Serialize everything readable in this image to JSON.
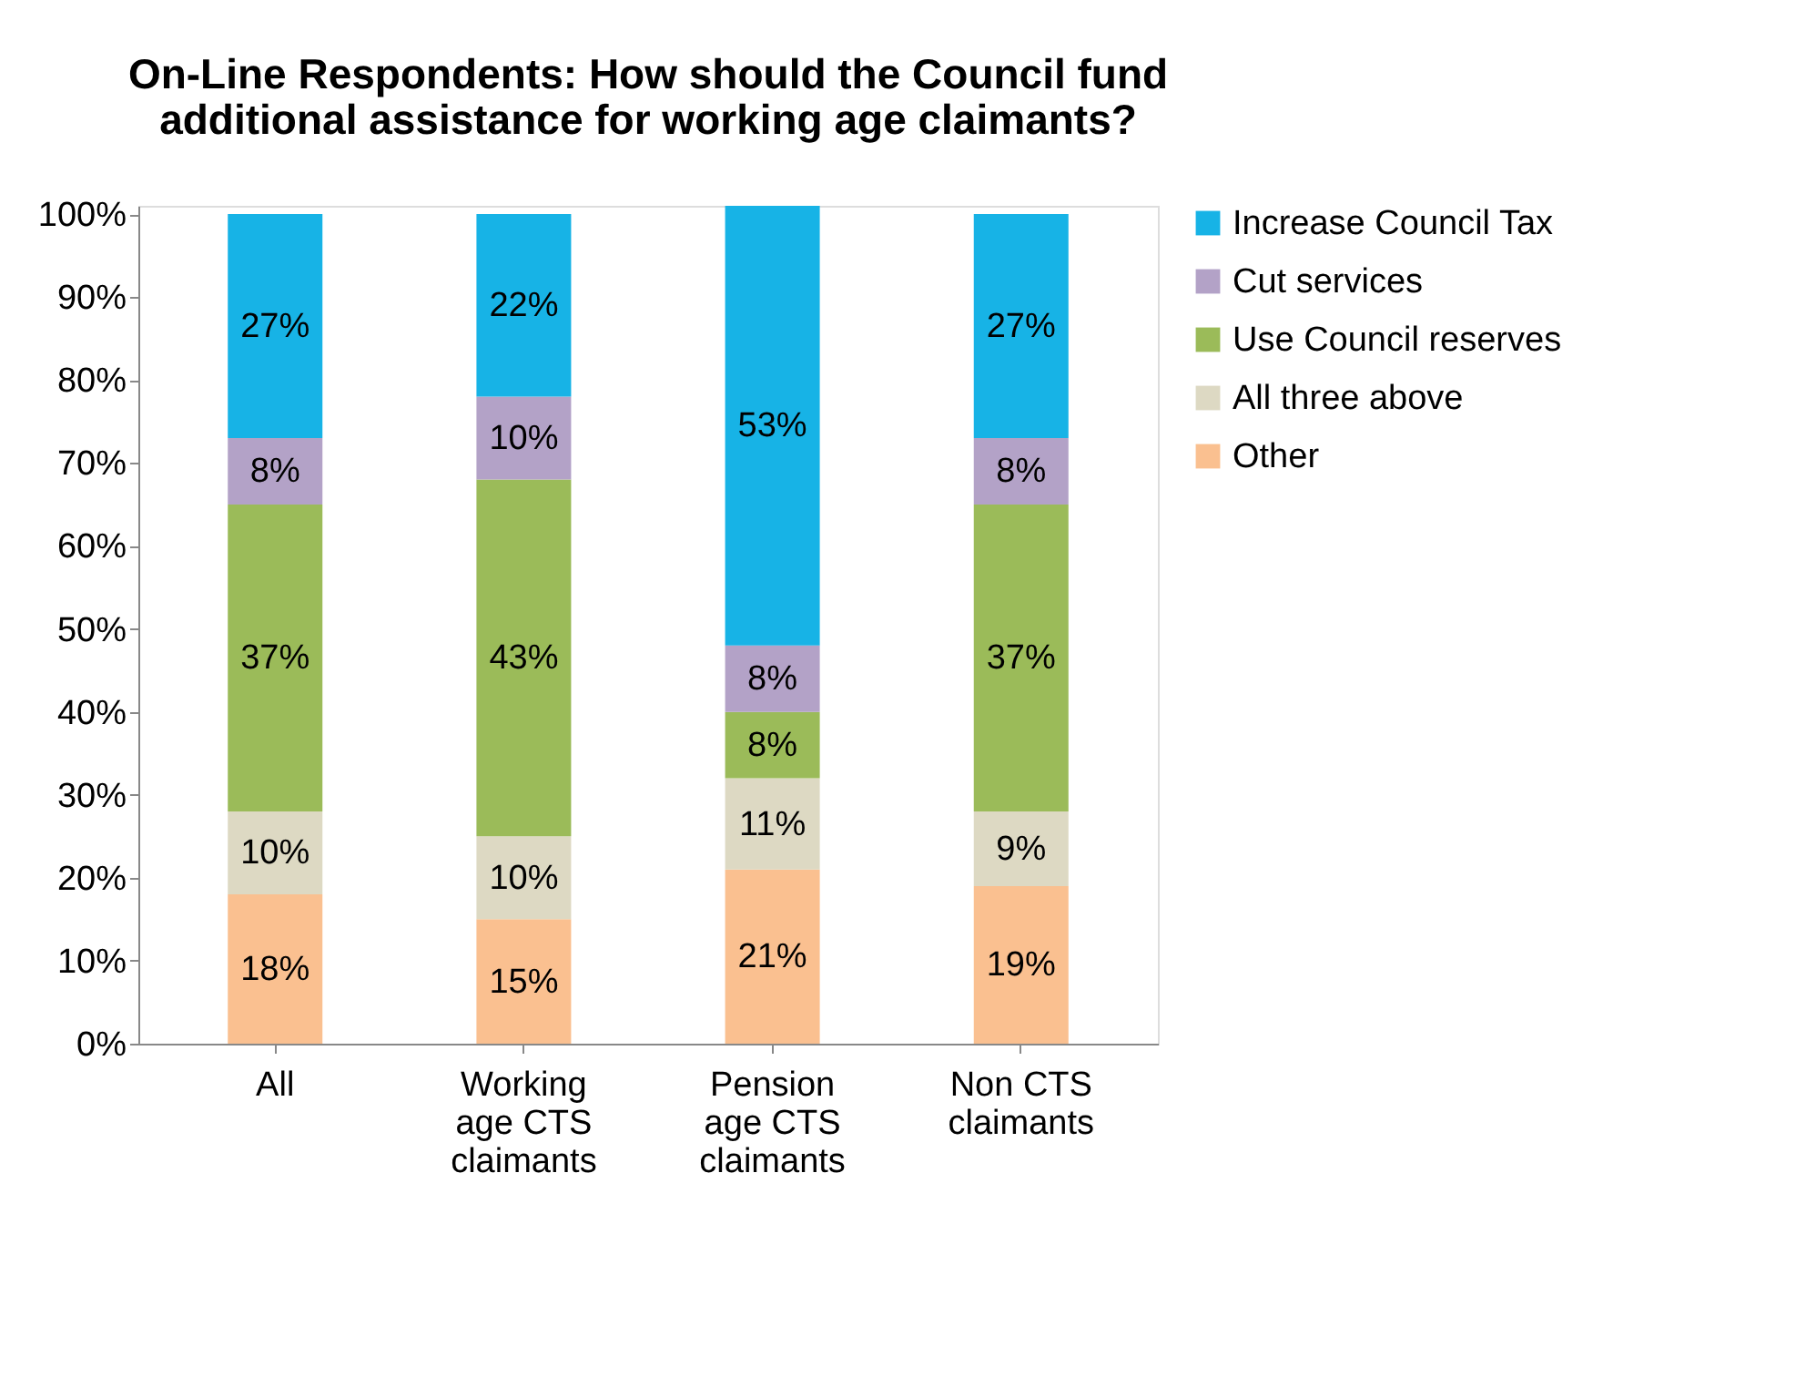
{
  "chart_data": {
    "type": "bar",
    "stacked": true,
    "title": "On-Line Respondents: How should the Council fund additional assistance for working age claimants?",
    "categories": [
      "All",
      "Working age CTS claimants",
      "Pension age CTS claimants",
      "Non CTS claimants"
    ],
    "series": [
      {
        "name": "Other",
        "color": "#fac090",
        "values": [
          18,
          15,
          21,
          19
        ],
        "value_labels": [
          "18%",
          "15%",
          "21%",
          "19%"
        ]
      },
      {
        "name": "All three above",
        "color": "#ddd9c3",
        "values": [
          10,
          10,
          11,
          9
        ],
        "value_labels": [
          "10%",
          "10%",
          "11%",
          "9%"
        ]
      },
      {
        "name": "Use Council reserves",
        "color": "#9bbb59",
        "values": [
          37,
          43,
          8,
          37
        ],
        "value_labels": [
          "37%",
          "43%",
          "8%",
          "37%"
        ]
      },
      {
        "name": "Cut services",
        "color": "#b3a2c7",
        "values": [
          8,
          10,
          8,
          8
        ],
        "value_labels": [
          "8%",
          "10%",
          "8%",
          "8%"
        ]
      },
      {
        "name": "Increase Council Tax",
        "color": "#17b3e6",
        "values": [
          27,
          22,
          53,
          27
        ],
        "value_labels": [
          "27%",
          "22%",
          "53%",
          "27%"
        ]
      }
    ],
    "ylim": [
      0,
      101
    ],
    "yticks": [
      {
        "value": 0,
        "label": "0%"
      },
      {
        "value": 10,
        "label": "10%"
      },
      {
        "value": 20,
        "label": "20%"
      },
      {
        "value": 30,
        "label": "30%"
      },
      {
        "value": 40,
        "label": "40%"
      },
      {
        "value": 50,
        "label": "50%"
      },
      {
        "value": 60,
        "label": "60%"
      },
      {
        "value": 70,
        "label": "70%"
      },
      {
        "value": 80,
        "label": "80%"
      },
      {
        "value": 90,
        "label": "90%"
      },
      {
        "value": 100,
        "label": "100%"
      }
    ],
    "grid": false,
    "legend": "right"
  }
}
